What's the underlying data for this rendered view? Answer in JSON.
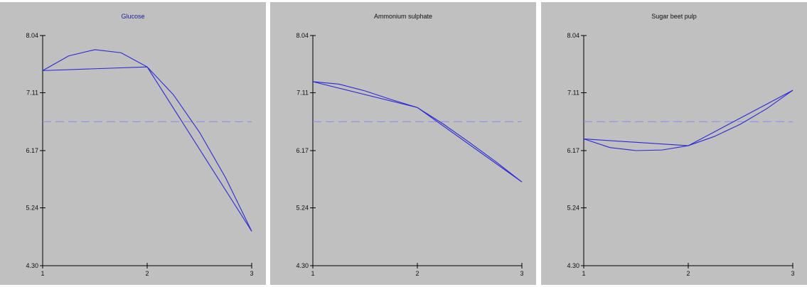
{
  "panels": [
    {
      "title": "Glucose",
      "title_color": "#1e1e9c"
    },
    {
      "title": "Ammonium sulphate",
      "title_color": "#111111"
    },
    {
      "title": "Sugar beet pulp",
      "title_color": "#111111"
    }
  ],
  "chart_data": [
    {
      "type": "line",
      "title": "Glucose",
      "xlabel": "",
      "ylabel": "",
      "x_ticks": [
        "1",
        "2",
        "3"
      ],
      "y_ticks": [
        "4.30",
        "5.24",
        "6.17",
        "7.11",
        "8.04"
      ],
      "xlim": [
        1,
        3
      ],
      "ylim": [
        4.3,
        8.04
      ],
      "grid": false,
      "reference_line": {
        "y": 6.64,
        "style": "dashed"
      },
      "series": [
        {
          "x": [
            1,
            2,
            3
          ],
          "y": [
            7.47,
            7.53,
            4.86
          ]
        },
        {
          "x": [
            1,
            1.25,
            1.5,
            1.75,
            2,
            2.25,
            2.5,
            2.75,
            3
          ],
          "y": [
            7.47,
            7.71,
            7.81,
            7.76,
            7.53,
            7.08,
            6.47,
            5.73,
            4.86
          ]
        }
      ],
      "colors": {
        "curve": "#2a2ad4",
        "reference": "#8a8ae8",
        "axis": "#000000"
      }
    },
    {
      "type": "line",
      "title": "Ammonium sulphate",
      "xlabel": "",
      "ylabel": "",
      "x_ticks": [
        "1",
        "2",
        "3"
      ],
      "y_ticks": [
        "4.30",
        "5.24",
        "6.17",
        "7.11",
        "8.04"
      ],
      "xlim": [
        1,
        3
      ],
      "ylim": [
        4.3,
        8.04
      ],
      "grid": false,
      "reference_line": {
        "y": 6.64,
        "style": "dashed"
      },
      "series": [
        {
          "x": [
            1,
            2,
            3
          ],
          "y": [
            7.29,
            6.87,
            5.66
          ]
        },
        {
          "x": [
            1,
            1.25,
            1.5,
            1.75,
            2,
            2.25,
            2.5,
            2.75,
            3
          ],
          "y": [
            7.29,
            7.25,
            7.14,
            7.0,
            6.87,
            6.6,
            6.3,
            5.99,
            5.66
          ]
        }
      ],
      "colors": {
        "curve": "#2a2ad4",
        "reference": "#8a8ae8",
        "axis": "#000000"
      }
    },
    {
      "type": "line",
      "title": "Sugar beet pulp",
      "xlabel": "",
      "ylabel": "",
      "x_ticks": [
        "1",
        "2",
        "3"
      ],
      "y_ticks": [
        "4.30",
        "5.24",
        "6.17",
        "7.11",
        "8.04"
      ],
      "xlim": [
        1,
        3
      ],
      "ylim": [
        4.3,
        8.04
      ],
      "grid": false,
      "reference_line": {
        "y": 6.64,
        "style": "dashed"
      },
      "series": [
        {
          "x": [
            1,
            2,
            3
          ],
          "y": [
            6.36,
            6.25,
            7.15
          ]
        },
        {
          "x": [
            1,
            1.25,
            1.5,
            1.75,
            2,
            2.25,
            2.5,
            2.75,
            3
          ],
          "y": [
            6.36,
            6.22,
            6.17,
            6.18,
            6.25,
            6.4,
            6.6,
            6.85,
            7.15
          ]
        }
      ],
      "colors": {
        "curve": "#2a2ad4",
        "reference": "#8a8ae8",
        "axis": "#000000"
      }
    }
  ]
}
